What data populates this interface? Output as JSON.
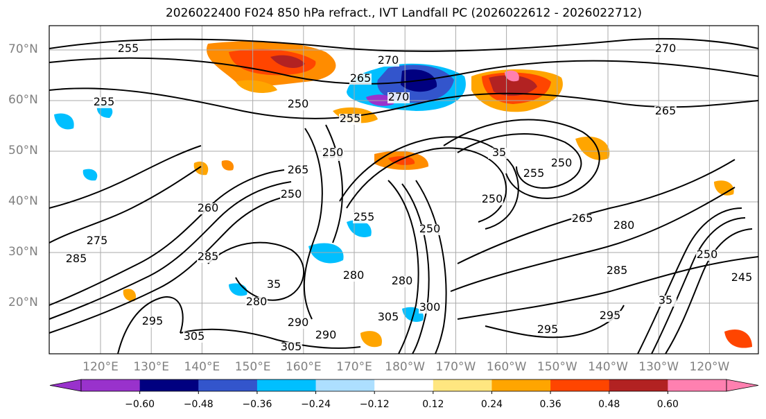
{
  "title": "2026022400 F024 850 hPa refract., IVT Landfall PC (2026022612 - 2026022712)",
  "lat_labels": [
    "70°N",
    "60°N",
    "50°N",
    "40°N",
    "30°N",
    "20°N"
  ],
  "lon_labels": [
    "120°E",
    "130°E",
    "140°E",
    "150°E",
    "160°E",
    "170°E",
    "180°W",
    "170°W",
    "160°W",
    "150°W",
    "140°W",
    "130°W",
    "120°W"
  ],
  "contour_labels": [
    "255",
    "270",
    "265",
    "250",
    "255",
    "250",
    "255",
    "270",
    "250",
    "260",
    "250",
    "250",
    "255",
    "265",
    "250",
    "280",
    "35",
    "35",
    "265",
    "255",
    "280",
    "275",
    "285",
    "285",
    "305",
    "295",
    "305",
    "290",
    "305",
    "300",
    "280",
    "295",
    "250",
    "35",
    "245",
    "280",
    "295",
    "290",
    "285",
    "250",
    "270",
    "265"
  ],
  "colorbar": {
    "colors": [
      "#9932CC",
      "#000080",
      "#3355CC",
      "#00BFFF",
      "#ADDFFF",
      "#FFFFFF",
      "#FFE680",
      "#FFA500",
      "#FF4500",
      "#B22222",
      "#FF80B0"
    ],
    "ticks": [
      "−0.60",
      "−0.48",
      "−0.36",
      "−0.24",
      "−0.12",
      "0.12",
      "0.24",
      "0.36",
      "0.48",
      "0.60"
    ]
  },
  "colors": {
    "grid": "#aaaaaa",
    "contour": "#000000",
    "axis_text": "#808080"
  }
}
